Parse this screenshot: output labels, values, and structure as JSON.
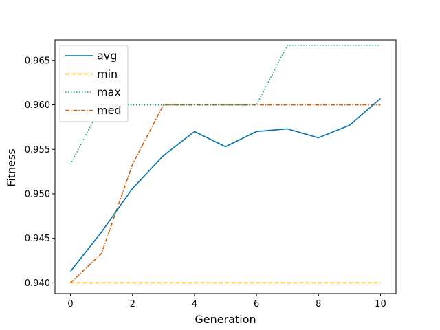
{
  "chart_data": {
    "type": "line",
    "title": "",
    "xlabel": "Generation",
    "ylabel": "Fitness",
    "xlim": [
      -0.5,
      10.5
    ],
    "ylim": [
      0.9388,
      0.9673
    ],
    "xticks": [
      0,
      2,
      4,
      6,
      8,
      10
    ],
    "yticks": [
      0.94,
      0.945,
      0.95,
      0.955,
      0.96,
      0.965
    ],
    "ytick_labels": [
      "0.940",
      "0.945",
      "0.950",
      "0.955",
      "0.960",
      "0.965"
    ],
    "grid": false,
    "legend": "top-left",
    "x": [
      0,
      1,
      2,
      3,
      4,
      5,
      6,
      7,
      8,
      9,
      10
    ],
    "series": [
      {
        "name": "avg",
        "color": "#0072b2",
        "style": "solid",
        "values": [
          0.9413,
          0.9457,
          0.9506,
          0.9543,
          0.957,
          0.9553,
          0.957,
          0.9573,
          0.9563,
          0.9577,
          0.9607
        ]
      },
      {
        "name": "min",
        "color": "#e69f00",
        "style": "dashed",
        "values": [
          0.94,
          0.94,
          0.94,
          0.94,
          0.94,
          0.94,
          0.94,
          0.94,
          0.94,
          0.94,
          0.94
        ]
      },
      {
        "name": "max",
        "color": "#009e73",
        "style": "dotted",
        "values": [
          0.9533,
          0.96,
          0.96,
          0.96,
          0.96,
          0.96,
          0.96,
          0.9667,
          0.9667,
          0.9667,
          0.9667
        ]
      },
      {
        "name": "med",
        "color": "#d55e00",
        "style": "dashdot",
        "values": [
          0.94,
          0.9433,
          0.9533,
          0.96,
          0.96,
          0.96,
          0.96,
          0.96,
          0.96,
          0.96,
          0.96
        ]
      }
    ]
  }
}
